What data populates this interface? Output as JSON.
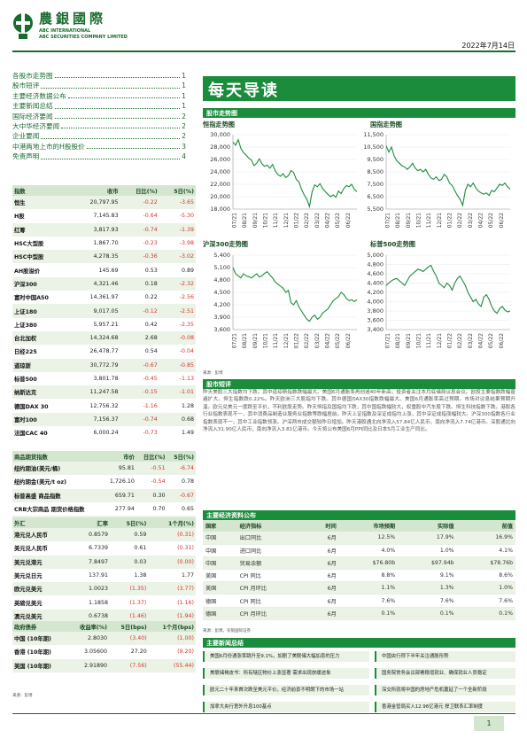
{
  "header": {
    "brand": "農銀國際",
    "sub1": "ABC INTERNATIONAL",
    "sub2": "ABC SECURITIES COMPANY LIMITED",
    "date": "2022年7月14日"
  },
  "toc": [
    {
      "title": "各股市走势图",
      "page": "1"
    },
    {
      "title": "股市短评",
      "page": "1"
    },
    {
      "title": "主要经济数据公布",
      "page": "1"
    },
    {
      "title": "主要新闻总结",
      "page": "1"
    },
    {
      "title": "国际经济要闻",
      "page": "2"
    },
    {
      "title": "大中华经济要闻",
      "page": "2"
    },
    {
      "title": "企业要闻",
      "page": "2"
    },
    {
      "title": "中港两地上市的H股股价",
      "page": "3"
    },
    {
      "title": "免责声明",
      "page": "4"
    }
  ],
  "indices": {
    "headers": [
      "指数",
      "收市",
      "日比(%)",
      "5日(%)"
    ],
    "rows": [
      [
        "恒生",
        "20,797.95",
        "-0.22",
        "-3.65"
      ],
      [
        "H股",
        "7,145.83",
        "-0.64",
        "-5.30"
      ],
      [
        "红筹",
        "3,817.93",
        "-0.74",
        "-1.39"
      ],
      [
        "HSC大型股",
        "1,867.70",
        "-0.23",
        "-3.98"
      ],
      [
        "HSC中型股",
        "4,278.35",
        "-0.36",
        "-3.02"
      ],
      [
        "AH股溢价",
        "145.69",
        "0.53",
        "0.89"
      ],
      [
        "沪深300",
        "4,321.46",
        "0.18",
        "-2.32"
      ],
      [
        "富时中国A50",
        "14,361.97",
        "0.22",
        "-2.56"
      ],
      [
        "上证180",
        "9,017.05",
        "-0.12",
        "-2.51"
      ],
      [
        "上证380",
        "5,957.21",
        "0.42",
        "-2.35"
      ],
      [
        "台北加权",
        "14,324.68",
        "2.68",
        "-0.08"
      ],
      [
        "日经225",
        "26,478.77",
        "0.54",
        "-0.04"
      ],
      [
        "道琼斯",
        "30,772.79",
        "-0.67",
        "-0.85"
      ],
      [
        "标普500",
        "3,801.78",
        "-0.45",
        "-1.13"
      ],
      [
        "纳斯达克",
        "11,247.58",
        "-0.15",
        "-1.01"
      ],
      [
        "德国DAX 30",
        "12,756.32",
        "-1.16",
        "1.28"
      ],
      [
        "富时100",
        "7,156.37",
        "-0.74",
        "0.68"
      ],
      [
        "法国CAC 40",
        "6,000.24",
        "-0.73",
        "1.49"
      ]
    ]
  },
  "commodities": {
    "headers": [
      "商品期货指数",
      "市价",
      "日比(%)",
      "5日(%)"
    ],
    "rows": [
      [
        "纽约期油(美元/桶)",
        "95.81",
        "-0.51",
        "-6.74"
      ],
      [
        "纽约期金(美元/t oz)",
        "1,726.10",
        "-0.54",
        "0.78"
      ],
      [
        "标普高盛 商品指数",
        "659.71",
        "0.30",
        "-0.67"
      ],
      [
        "CRB大宗商品 期货价格指数",
        "277.94",
        "0.70",
        "0.65"
      ],
      [
        "罗杰斯国际 商品指数",
        "3,745.52",
        "0.62",
        "1.11"
      ]
    ]
  },
  "fx": {
    "headers": [
      "外汇",
      "汇率",
      "5日(%)",
      "1个月(%)"
    ],
    "rows": [
      [
        "港元兑人民币",
        "0.8579",
        "0.59",
        "(0.31)"
      ],
      [
        "美元兑人民币",
        "6.7339",
        "0.61",
        "(0.31)"
      ],
      [
        "美元兑港元",
        "7.8497",
        "0.03",
        "(0.00)"
      ],
      [
        "美元兑日元",
        "137.91",
        "1.38",
        "1.77"
      ],
      [
        "欧元兑美元",
        "1.0023",
        "(1.35)",
        "(3.77)"
      ],
      [
        "英磅兑美元",
        "1.1858",
        "(1.37)",
        "(1.16)"
      ],
      [
        "澳元兑美元",
        "0.6738",
        "(1.46)",
        "(1.94)"
      ]
    ]
  },
  "bonds": {
    "headers": [
      "政府债券",
      "收益率(%)",
      "5日(bps)",
      "1个月(bps)"
    ],
    "rows": [
      [
        "中国 (10年期)",
        "2.8030",
        "(3.40)",
        "(1.00)"
      ],
      [
        "香港 (10年期)",
        "3.05600",
        "27.20",
        "(9.20)"
      ],
      [
        "美国 (10年期)",
        "2.91890",
        "(7.56)",
        "(55.44)"
      ]
    ]
  },
  "left_source": "来源：彭博",
  "main": {
    "title": "每天导读",
    "sec_charts": "股市走势图",
    "sec_comment": "股市短评",
    "sec_econ": "主要经济资料公布",
    "sec_news": "主要新闻总结",
    "chart_source": "来源：彭博"
  },
  "chart_data": [
    {
      "type": "line",
      "title": "恒指走势图",
      "ylim": [
        18000,
        30000
      ],
      "yticks": [
        "30,000",
        "28,000",
        "26,000",
        "24,000",
        "22,000",
        "20,000",
        "18,000"
      ],
      "xticks": [
        "07/21",
        "08/21",
        "09/21",
        "10/21",
        "11/21",
        "12/21",
        "01/22",
        "02/22",
        "03/22",
        "04/22",
        "05/22",
        "06/22"
      ],
      "values": [
        28800,
        28300,
        29200,
        27800,
        27100,
        26700,
        26200,
        25900,
        25000,
        25400,
        26100,
        25300,
        24900,
        25100,
        24600,
        25200,
        24200,
        23600,
        23300,
        23700,
        23100,
        23400,
        24200,
        23900,
        22800,
        22400,
        21200,
        20300,
        19600,
        18400,
        20800,
        21900,
        21600,
        22100,
        21300,
        20800,
        20400,
        20000,
        20300,
        19900,
        20900,
        20500,
        21300,
        21800,
        21600,
        22000,
        21200,
        20800
      ]
    },
    {
      "type": "line",
      "title": "国指走势图",
      "ylim": [
        5500,
        11500
      ],
      "yticks": [
        "11,500",
        "10,500",
        "9,500",
        "8,500",
        "7,500",
        "6,500",
        "5,500"
      ],
      "xticks": [
        "07/21",
        "08/21",
        "09/21",
        "10/21",
        "11/21",
        "12/21",
        "01/22",
        "02/22",
        "03/22",
        "04/22",
        "05/22",
        "06/22"
      ],
      "values": [
        10600,
        10100,
        10500,
        9800,
        9400,
        9200,
        9000,
        8900,
        8700,
        8900,
        9200,
        8800,
        8600,
        8700,
        8500,
        8700,
        8300,
        8000,
        7900,
        8100,
        7800,
        7900,
        8300,
        8100,
        7600,
        7400,
        7000,
        6600,
        6300,
        5800,
        7000,
        7500,
        7300,
        7600,
        7200,
        6950,
        6800,
        6700,
        6800,
        6600,
        7000,
        6900,
        7200,
        7500,
        7400,
        7600,
        7300,
        7100
      ]
    },
    {
      "type": "line",
      "title": "沪深300走势图",
      "ylim": [
        3600,
        5400
      ],
      "yticks": [
        "5,400",
        "5,100",
        "4,800",
        "4,500",
        "4,200",
        "3,900",
        "3,600"
      ],
      "xticks": [
        "07/21",
        "08/21",
        "09/21",
        "10/21",
        "11/21",
        "12/21",
        "01/22",
        "02/22",
        "03/22",
        "04/22",
        "05/22",
        "06/22"
      ],
      "values": [
        5100,
        4950,
        4900,
        4850,
        4950,
        4900,
        4880,
        4850,
        4900,
        4950,
        4870,
        4900,
        4960,
        5000,
        4920,
        4850,
        4750,
        4700,
        4650,
        4600,
        4500,
        4550,
        4250,
        4200,
        4300,
        4150,
        4050,
        3950,
        3850,
        3800,
        3900,
        3950,
        3850,
        3900,
        4000,
        4050,
        4100,
        4200,
        4300,
        4350,
        4400,
        4500,
        4450,
        4350,
        4300,
        4320,
        4280,
        4320
      ]
    },
    {
      "type": "line",
      "title": "标普500走势图",
      "ylim": [
        3400,
        5000
      ],
      "yticks": [
        "5,000",
        "4,800",
        "4,600",
        "4,400",
        "4,200",
        "4,000",
        "3,800",
        "3,600",
        "3,400"
      ],
      "xticks": [
        "07/21",
        "08/21",
        "09/21",
        "10/21",
        "11/21",
        "12/21",
        "01/22",
        "02/22",
        "03/22",
        "04/22",
        "05/22",
        "06/22"
      ],
      "values": [
        4350,
        4400,
        4450,
        4480,
        4500,
        4450,
        4400,
        4350,
        4450,
        4550,
        4600,
        4650,
        4700,
        4680,
        4650,
        4700,
        4750,
        4780,
        4650,
        4550,
        4400,
        4350,
        4300,
        4400,
        4350,
        4250,
        4400,
        4500,
        4550,
        4450,
        4350,
        4200,
        4100,
        4000,
        4050,
        3950,
        3900,
        4100,
        4150,
        4050,
        3900,
        3800,
        3750,
        3850,
        3900,
        3820,
        3780,
        3800
      ]
    }
  ],
  "commentary": "昨天美股三大指数均下跌。其中道琼斯指数跌幅最大。美国6月通胀率再创逾40年新高，投资者关注本月底储局议息会议。欧股主要指数跌幅普遍扩大。恒生指数跌0.22%。昨天欧洲三大股指均下跌。其中德国DAX30指数跌幅最大。美国6月通胀率高过预期。市场对议息结果预期升温。欧元兑美元一度跌至平价，不利欧股走势。昨天恒指及国指均下跌，其中国指跌幅较大，权重股中汽车股下跌。恒生科技指数下跌。港股各行业指数表现不一，其中消费品制造业服务业指数等跌幅居前。昨天上证指数及深证成指均上涨，其中深证成指涨幅较大。沪深300指数各行业指数表现不一，其中工业指数领涨。沪深两市成交额较昨日增加。昨天港股通北向净流入57.84亿人民币。南向净流入7.74亿港币。深股通北向净流入31.90亿人民币，南向净流入3.81亿港币。今天将公布美国6月PPI同比及日本5月工业生产同比。",
  "econ": {
    "headers": [
      "国家",
      "经济指标",
      "时间",
      "市场预期",
      "实际值",
      "前值"
    ],
    "rows": [
      [
        "中国",
        "出口同比",
        "6月",
        "12.5%",
        "17.9%",
        "16.9%"
      ],
      [
        "中国",
        "进口同比",
        "6月",
        "4.0%",
        "1.0%",
        "4.1%"
      ],
      [
        "中国",
        "贸易余额",
        "6月",
        "$76.80b",
        "$97.94b",
        "$78.76b"
      ],
      [
        "美国",
        "CPI 同比",
        "6月",
        "8.8%",
        "9.1%",
        "8.6%"
      ],
      [
        "美国",
        "CPI 月环比",
        "6月",
        "1.1%",
        "1.3%",
        "1.0%"
      ],
      [
        "德国",
        "CPI 同比",
        "6月",
        "7.6%",
        "7.6%",
        "7.6%"
      ],
      [
        "德国",
        "CPI 月环比",
        "6月",
        "0.1%",
        "0.1%",
        "0.1%"
      ]
    ]
  },
  "econ_source": "来源：彭博，农银国际证券",
  "news": [
    [
      "美国6月份通涨率跳升至9.1%，加剧了美联储大幅加息的压力",
      "中国央行称下半年关注通胀形势"
    ],
    [
      "美联储褐皮书：所有辖区物价上涨显著 需求出现放缓迹象",
      "国务院常务会议部署稳增就业、确保就业人员稳定"
    ],
    [
      "欧元二十年来首次跌至美元平价，经济前景不明朗下的市场一站",
      "深交所就将中国的房地产危机蔓延了一个全新阶段"
    ],
    [
      "加拿大央行意外升息100基点",
      "香港金管局买入12.96亿港元 捍卫联系汇率制度"
    ]
  ],
  "page_number": "1"
}
